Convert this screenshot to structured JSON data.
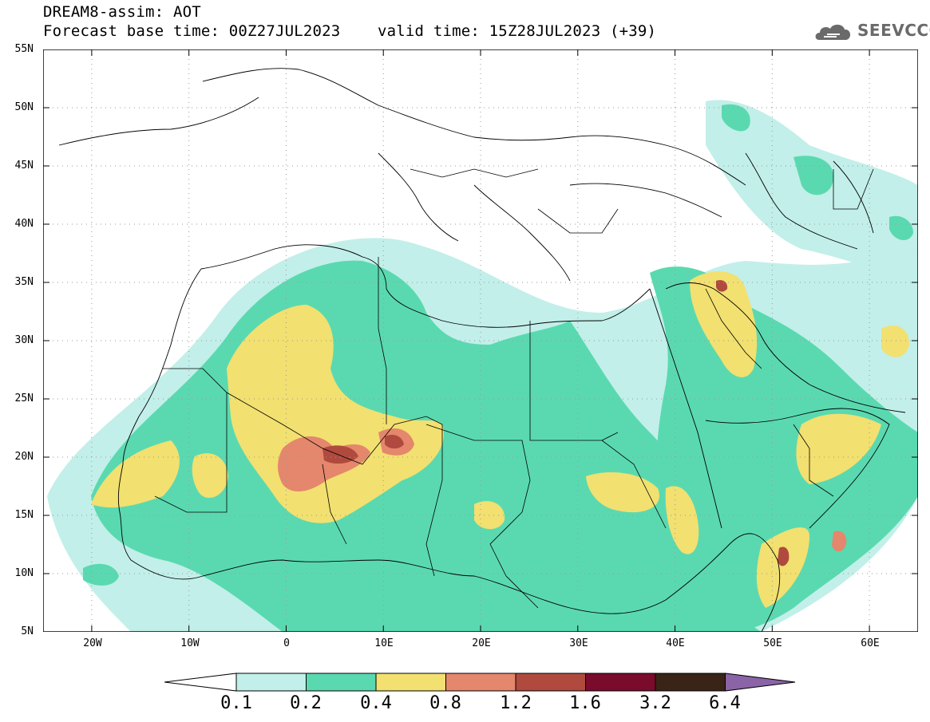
{
  "header": {
    "title_line1": "DREAM8-assim: AOT",
    "title_line2": "Forecast base time: 00Z27JUL2023    valid time: 15Z28JUL2023 (+39)"
  },
  "logo": {
    "text": "SEEVCCC",
    "icon": "cloud-icon"
  },
  "map": {
    "lon_range": [
      -25,
      65
    ],
    "lat_range": [
      5,
      55
    ],
    "x_ticks": [
      "20W",
      "10W",
      "0",
      "10E",
      "20E",
      "30E",
      "40E",
      "50E",
      "60E"
    ],
    "y_ticks": [
      "55N",
      "50N",
      "45N",
      "40N",
      "35N",
      "30N",
      "25N",
      "20N",
      "15N",
      "10N",
      "5N"
    ]
  },
  "colorbar": {
    "labels": [
      "0.1",
      "0.2",
      "0.4",
      "0.8",
      "1.2",
      "1.6",
      "3.2",
      "6.4"
    ],
    "colors": [
      "#c2efe9",
      "#5ad9b0",
      "#f2e070",
      "#e4876c",
      "#b04a3e",
      "#7a0b2c",
      "#3a2418",
      "#8a64a6"
    ]
  }
}
